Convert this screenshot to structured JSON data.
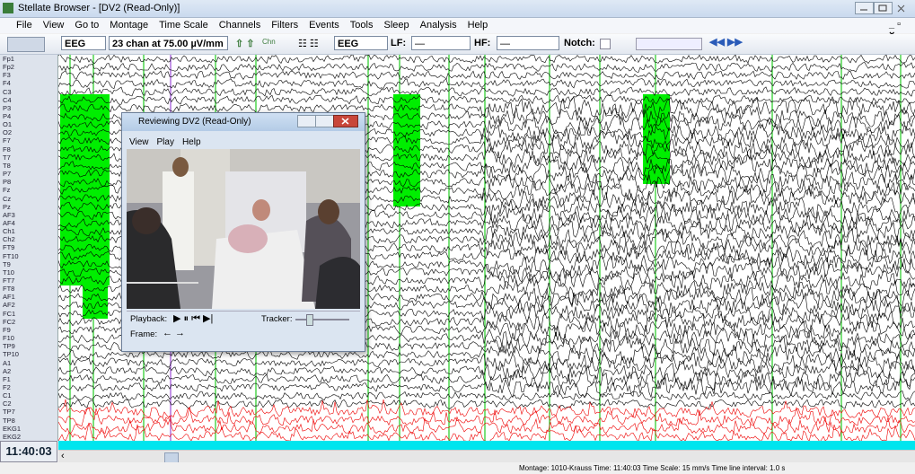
{
  "window": {
    "title": "Stellate Browser - [DV2 (Read-Only)]"
  },
  "menu": [
    "File",
    "View",
    "Go to",
    "Montage",
    "Time Scale",
    "Channels",
    "Filters",
    "Events",
    "Tools",
    "Sleep",
    "Analysis",
    "Help"
  ],
  "toolbar": {
    "montage": "EEG",
    "sensitivity": "23 chan at 75.00 µV/mm",
    "chn_icon": "Chn",
    "montage2": "EEG",
    "lf_label": "LF:",
    "lf_value": "—",
    "hf_label": "HF:",
    "hf_value": "—",
    "notch_label": "Notch:"
  },
  "channels": [
    "Fp1",
    "Fp2",
    "F3",
    "F4",
    "C3",
    "C4",
    "P3",
    "P4",
    "O1",
    "O2",
    "F7",
    "F8",
    "T7",
    "T8",
    "P7",
    "P8",
    "Fz",
    "Cz",
    "Pz",
    "AF3",
    "AF4",
    "Ch1",
    "Ch2",
    "FT9",
    "FT10",
    "T9",
    "T10",
    "FT7",
    "FT8",
    "AF1",
    "AF2",
    "FC1",
    "FC2",
    "F9",
    "F10",
    "TP9",
    "TP10",
    "A1",
    "A2",
    "F1",
    "F2",
    "C1",
    "C2",
    "TP7",
    "TP8",
    "EKG1",
    "EKG2"
  ],
  "time": "11:40:03",
  "status": "Montage: 1010-Krauss   Time: 11:40:03   Time Scale: 15 mm/s   Time line interval: 1.0 s",
  "video": {
    "title": "Reviewing DV2 (Read-Only)",
    "menu": [
      "View",
      "Play",
      "Help"
    ],
    "playback": "Playback:",
    "tracker": "Tracker:",
    "frame": "Frame:"
  }
}
